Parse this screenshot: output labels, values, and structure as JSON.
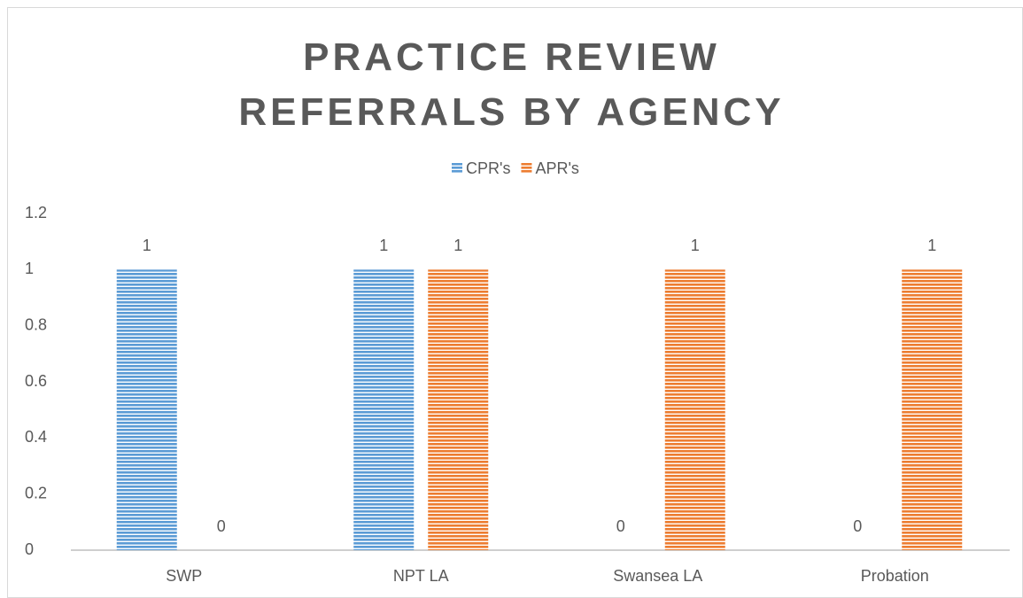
{
  "chart_data": {
    "type": "bar",
    "title": "PRACTICE REVIEW REFERRALS BY AGENCY",
    "categories": [
      "SWP",
      "NPT LA",
      "Swansea LA",
      "Probation"
    ],
    "series": [
      {
        "name": "CPR's",
        "color": "#5b9bd5",
        "values": [
          1,
          1,
          0,
          0
        ]
      },
      {
        "name": "APR's",
        "color": "#ed7d31",
        "values": [
          0,
          1,
          1,
          1
        ]
      }
    ],
    "ylim": [
      0,
      1.2
    ],
    "yticks": [
      0,
      0.2,
      0.4,
      0.6,
      0.8,
      1,
      1.2
    ],
    "legend": "top",
    "grid": false
  }
}
